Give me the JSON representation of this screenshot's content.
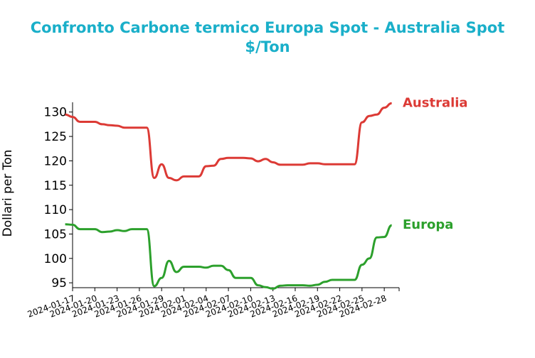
{
  "chart_data": {
    "type": "line",
    "title": "Confronto Carbone termico Europa Spot - Australia Spot",
    "subtitle": "$/Ton",
    "xlabel": "",
    "ylabel": "Dollari per Ton",
    "ylim": [
      94,
      132
    ],
    "yticks": [
      95,
      100,
      105,
      110,
      115,
      120,
      125,
      130
    ],
    "xticks": [
      "2024-01-17",
      "2024-01-20",
      "2024-01-23",
      "2024-01-26",
      "2024-01-29",
      "2024-02-01",
      "2024-02-04",
      "2024-02-07",
      "2024-02-10",
      "2024-02-13",
      "2024-02-16",
      "2024-02-19",
      "2024-02-22",
      "2024-02-25",
      "2024-02-28"
    ],
    "xlim": [
      "2024-01-17",
      "2024-03-01"
    ],
    "grid": false,
    "legend": "labels at line ends",
    "series": [
      {
        "name": "Australia",
        "color": "#dc3a35",
        "points": [
          [
            "2024-01-16",
            129.5
          ],
          [
            "2024-01-17",
            129.0
          ],
          [
            "2024-01-18",
            128.0
          ],
          [
            "2024-01-19",
            128.0
          ],
          [
            "2024-01-20",
            128.0
          ],
          [
            "2024-01-21",
            127.5
          ],
          [
            "2024-01-22",
            127.3
          ],
          [
            "2024-01-23",
            127.2
          ],
          [
            "2024-01-24",
            126.8
          ],
          [
            "2024-01-25",
            126.8
          ],
          [
            "2024-01-26",
            126.8
          ],
          [
            "2024-01-27",
            126.8
          ],
          [
            "2024-01-28",
            116.5
          ],
          [
            "2024-01-29",
            119.3
          ],
          [
            "2024-01-30",
            116.5
          ],
          [
            "2024-01-31",
            116.0
          ],
          [
            "2024-02-01",
            116.8
          ],
          [
            "2024-02-02",
            116.8
          ],
          [
            "2024-02-03",
            116.8
          ],
          [
            "2024-02-04",
            118.9
          ],
          [
            "2024-02-05",
            119.0
          ],
          [
            "2024-02-06",
            120.4
          ],
          [
            "2024-02-07",
            120.6
          ],
          [
            "2024-02-08",
            120.6
          ],
          [
            "2024-02-09",
            120.6
          ],
          [
            "2024-02-10",
            120.5
          ],
          [
            "2024-02-11",
            119.9
          ],
          [
            "2024-02-12",
            120.4
          ],
          [
            "2024-02-13",
            119.7
          ],
          [
            "2024-02-14",
            119.2
          ],
          [
            "2024-02-15",
            119.2
          ],
          [
            "2024-02-16",
            119.2
          ],
          [
            "2024-02-17",
            119.2
          ],
          [
            "2024-02-18",
            119.5
          ],
          [
            "2024-02-19",
            119.5
          ],
          [
            "2024-02-20",
            119.3
          ],
          [
            "2024-02-21",
            119.3
          ],
          [
            "2024-02-22",
            119.3
          ],
          [
            "2024-02-23",
            119.3
          ],
          [
            "2024-02-24",
            119.3
          ],
          [
            "2024-02-25",
            127.9
          ],
          [
            "2024-02-26",
            129.2
          ],
          [
            "2024-02-27",
            129.5
          ],
          [
            "2024-02-28",
            130.9
          ],
          [
            "2024-02-29",
            131.8
          ]
        ]
      },
      {
        "name": "Europa",
        "color": "#2ca02c",
        "points": [
          [
            "2024-01-16",
            107.0
          ],
          [
            "2024-01-17",
            106.9
          ],
          [
            "2024-01-18",
            106.0
          ],
          [
            "2024-01-19",
            106.0
          ],
          [
            "2024-01-20",
            106.0
          ],
          [
            "2024-01-21",
            105.4
          ],
          [
            "2024-01-22",
            105.5
          ],
          [
            "2024-01-23",
            105.8
          ],
          [
            "2024-01-24",
            105.6
          ],
          [
            "2024-01-25",
            106.0
          ],
          [
            "2024-01-26",
            106.0
          ],
          [
            "2024-01-27",
            106.0
          ],
          [
            "2024-01-28",
            94.3
          ],
          [
            "2024-01-29",
            96.0
          ],
          [
            "2024-01-30",
            99.5
          ],
          [
            "2024-01-31",
            97.2
          ],
          [
            "2024-02-01",
            98.3
          ],
          [
            "2024-02-02",
            98.3
          ],
          [
            "2024-02-03",
            98.3
          ],
          [
            "2024-02-04",
            98.1
          ],
          [
            "2024-02-05",
            98.5
          ],
          [
            "2024-02-06",
            98.5
          ],
          [
            "2024-02-07",
            97.6
          ],
          [
            "2024-02-08",
            96.0
          ],
          [
            "2024-02-09",
            96.0
          ],
          [
            "2024-02-10",
            96.0
          ],
          [
            "2024-02-11",
            94.5
          ],
          [
            "2024-02-12",
            94.1
          ],
          [
            "2024-02-13",
            93.8
          ],
          [
            "2024-02-14",
            94.4
          ],
          [
            "2024-02-15",
            94.5
          ],
          [
            "2024-02-16",
            94.5
          ],
          [
            "2024-02-17",
            94.5
          ],
          [
            "2024-02-18",
            94.4
          ],
          [
            "2024-02-19",
            94.6
          ],
          [
            "2024-02-20",
            95.2
          ],
          [
            "2024-02-21",
            95.6
          ],
          [
            "2024-02-22",
            95.6
          ],
          [
            "2024-02-23",
            95.6
          ],
          [
            "2024-02-24",
            95.6
          ],
          [
            "2024-02-25",
            98.7
          ],
          [
            "2024-02-26",
            100.0
          ],
          [
            "2024-02-27",
            104.3
          ],
          [
            "2024-02-28",
            104.4
          ],
          [
            "2024-02-29",
            106.8
          ]
        ]
      }
    ]
  }
}
